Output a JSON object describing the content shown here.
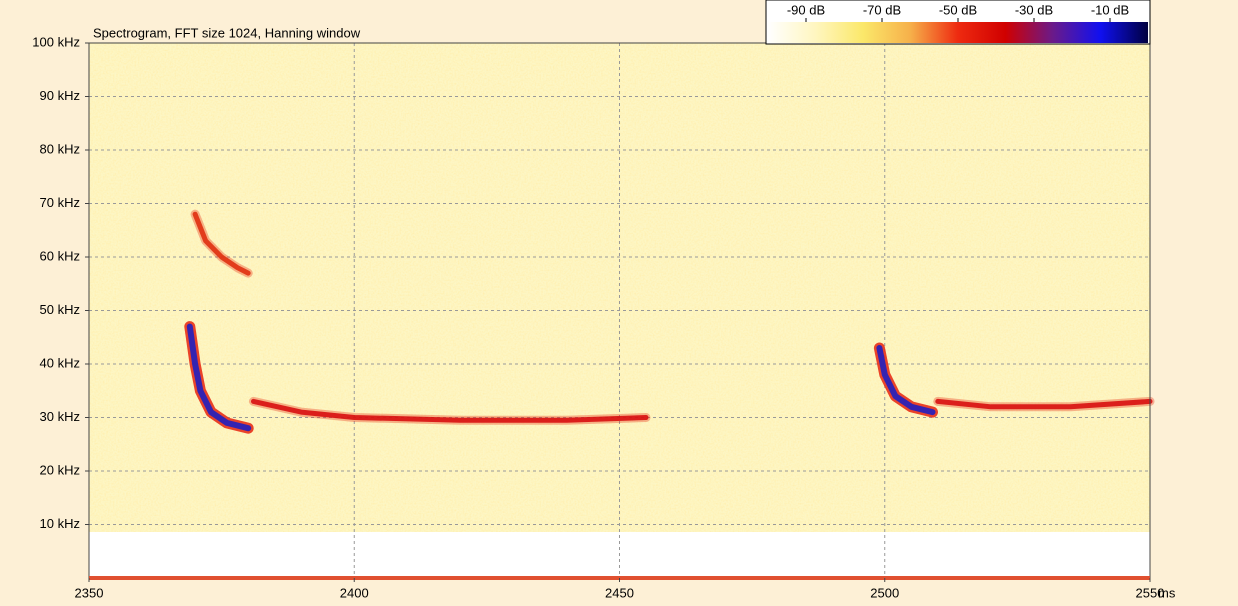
{
  "chart_data": {
    "type": "spectrogram",
    "title": "Spectrogram, FFT size 1024, Hanning window",
    "xlabel": "ms",
    "xlim": [
      2350,
      2550
    ],
    "xticks": [
      2350,
      2400,
      2450,
      2500,
      2550
    ],
    "ylim": [
      0,
      100
    ],
    "yticks": [
      {
        "value": 10,
        "label": "10 kHz"
      },
      {
        "value": 20,
        "label": "20 kHz"
      },
      {
        "value": 30,
        "label": "30 kHz"
      },
      {
        "value": 40,
        "label": "40 kHz"
      },
      {
        "value": 50,
        "label": "50 kHz"
      },
      {
        "value": 60,
        "label": "60 kHz"
      },
      {
        "value": 70,
        "label": "70 kHz"
      },
      {
        "value": 80,
        "label": "80 kHz"
      },
      {
        "value": 90,
        "label": "90 kHz"
      },
      {
        "value": 100,
        "label": "100 kHz"
      }
    ],
    "zlim": [
      -100,
      0
    ],
    "zticks": [
      {
        "value": -90,
        "label": "-90 dB"
      },
      {
        "value": -70,
        "label": "-70 dB"
      },
      {
        "value": -50,
        "label": "-50 dB"
      },
      {
        "value": -30,
        "label": "-30 dB"
      },
      {
        "value": -10,
        "label": "-10 dB"
      }
    ],
    "colormap": [
      "#ffffff",
      "#fff6c0",
      "#fbe86a",
      "#f6b04a",
      "#ee2a10",
      "#d00000",
      "#6a1a8a",
      "#1010f0",
      "#000040"
    ],
    "grid": true,
    "series": [
      {
        "color": "#e03010",
        "x": [
          2370,
          2372,
          2375,
          2378,
          2380
        ],
        "y": [
          68,
          63,
          60,
          58,
          57
        ]
      },
      {
        "color": "#d81010",
        "x": [
          2381,
          2390,
          2400,
          2420,
          2440,
          2455
        ],
        "y": [
          33,
          31,
          30,
          29.5,
          29.5,
          30
        ]
      },
      {
        "color": "#2020c0",
        "x": [
          2369,
          2370,
          2371,
          2373,
          2376,
          2380
        ],
        "y": [
          47,
          40,
          35,
          31,
          29,
          28
        ]
      },
      {
        "color": "#d81010",
        "x": [
          2510,
          2520,
          2535,
          2550
        ],
        "y": [
          33,
          32,
          32,
          33
        ]
      },
      {
        "color": "#2020c0",
        "x": [
          2499,
          2500,
          2502,
          2505,
          2509
        ],
        "y": [
          43,
          38,
          34,
          32,
          31
        ]
      }
    ]
  }
}
